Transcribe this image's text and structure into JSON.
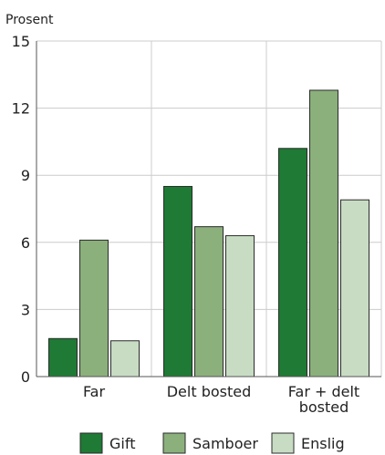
{
  "chart_data": {
    "type": "bar",
    "ylabel": "Prosent",
    "xlabel": "",
    "ylim": [
      0,
      15
    ],
    "yticks": [
      0,
      3,
      6,
      9,
      12,
      15
    ],
    "categories": [
      [
        "Far"
      ],
      [
        "Delt bosted"
      ],
      [
        "Far + delt",
        "bosted"
      ]
    ],
    "series": [
      {
        "name": "Gift",
        "color": "#1e7a34",
        "values": [
          1.7,
          8.5,
          10.2
        ]
      },
      {
        "name": "Samboer",
        "color": "#8bb07c",
        "values": [
          6.1,
          6.7,
          12.8
        ]
      },
      {
        "name": "Enslig",
        "color": "#c8dcc4",
        "values": [
          1.6,
          6.3,
          7.9
        ]
      }
    ],
    "grid": true,
    "legend": "bottom"
  }
}
